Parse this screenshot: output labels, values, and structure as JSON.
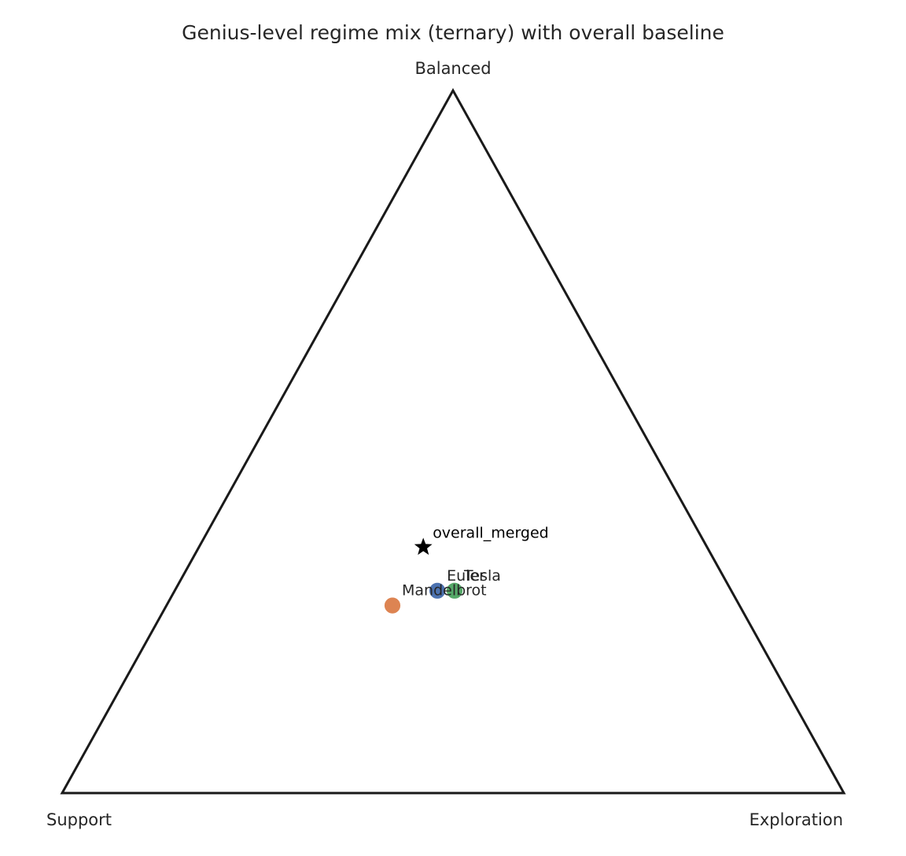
{
  "chart_data": {
    "type": "scatter",
    "subtype": "ternary",
    "title": "Genius-level regime mix (ternary) with overall baseline",
    "axes": {
      "top": "Balanced",
      "left": "Support",
      "right": "Exploration"
    },
    "grid": false,
    "legend": "none",
    "series": [
      {
        "name": "Euler",
        "color": "#4c72b0",
        "marker": "circle",
        "values": {
          "Support": 0.376,
          "Balanced": 0.288,
          "Exploration": 0.336
        }
      },
      {
        "name": "Tesla",
        "color": "#55a868",
        "marker": "circle",
        "values": {
          "Support": 0.354,
          "Balanced": 0.288,
          "Exploration": 0.358
        }
      },
      {
        "name": "Mandelbrot",
        "color": "#dd8452",
        "marker": "circle",
        "values": {
          "Support": 0.444,
          "Balanced": 0.267,
          "Exploration": 0.289
        }
      }
    ],
    "baseline": {
      "name": "overall_merged",
      "color": "#000000",
      "marker": "star",
      "values": {
        "Support": 0.363,
        "Balanced": 0.35,
        "Exploration": 0.287
      }
    },
    "triangle_color": "#1a1a1a"
  }
}
